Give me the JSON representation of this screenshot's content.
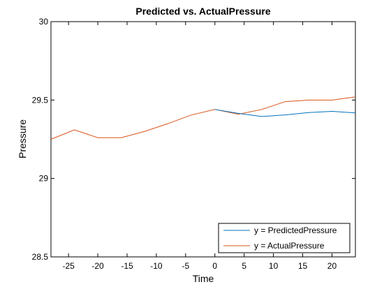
{
  "chart_data": {
    "type": "line",
    "title": "Predicted vs. ActualPressure",
    "xlabel": "Time",
    "ylabel": "Pressure",
    "xlim": [
      -28,
      24
    ],
    "ylim": [
      28.5,
      30
    ],
    "xticks": [
      -25,
      -20,
      -15,
      -10,
      -5,
      0,
      5,
      10,
      15,
      20
    ],
    "yticks": [
      28.5,
      29,
      29.5,
      30
    ],
    "xtick_labels": [
      "-25",
      "-20",
      "-15",
      "-10",
      "-5",
      "0",
      "5",
      "10",
      "15",
      "20"
    ],
    "ytick_labels": [
      "28.5",
      "29",
      "29.5",
      "30"
    ],
    "grid": false,
    "legend_position": "bottom-right",
    "series": [
      {
        "name": "y = PredictedPressure",
        "color": "#0072bd",
        "x": [
          0,
          4,
          8,
          12,
          16,
          20,
          24
        ],
        "y": [
          29.44,
          29.415,
          29.395,
          29.405,
          29.42,
          29.428,
          29.418
        ]
      },
      {
        "name": "y = ActualPressure",
        "color": "#d95319",
        "x": [
          -28,
          -24,
          -20,
          -16,
          -12,
          -8,
          -4,
          0,
          4,
          8,
          12,
          16,
          20,
          24
        ],
        "y": [
          29.25,
          29.31,
          29.26,
          29.26,
          29.3,
          29.35,
          29.405,
          29.44,
          29.41,
          29.44,
          29.49,
          29.5,
          29.5,
          29.52
        ]
      }
    ]
  }
}
